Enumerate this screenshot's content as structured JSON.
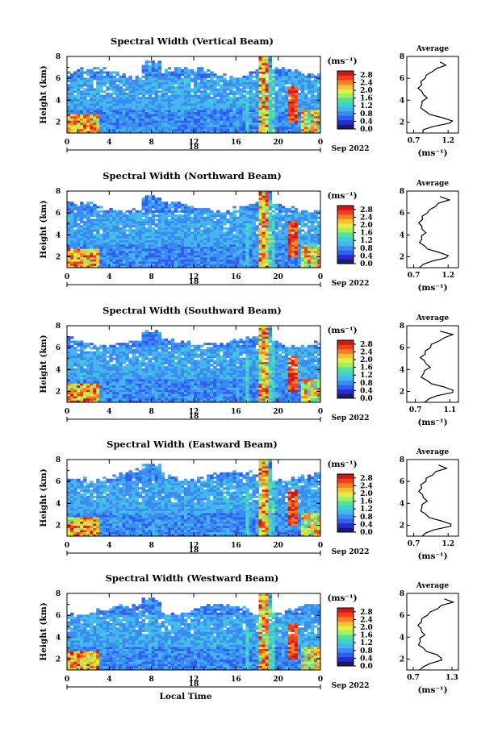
{
  "chart_data": [
    {
      "type": "heatmap",
      "title": "Spectral Width (Vertical Beam)",
      "ylabel": "Height (km)",
      "xlim": [
        0,
        24
      ],
      "ylim": [
        1,
        8
      ],
      "xticks": [
        "0",
        "4",
        "8",
        "12",
        "16",
        "20",
        "0"
      ],
      "yticks": [
        "2",
        "4",
        "6",
        "8"
      ],
      "date_marker": "18",
      "date_label": "Sep 2022",
      "colorbar": {
        "unit": "(ms⁻¹)",
        "ticks": [
          "0.0",
          "0.4",
          "0.8",
          "1.2",
          "1.6",
          "2.0",
          "2.4",
          "2.8"
        ],
        "range": [
          0,
          3.0
        ]
      },
      "average": {
        "title": "Average",
        "xlabel": "(ms⁻¹)",
        "xticks": [
          "0.7",
          "1.2"
        ],
        "xlim": [
          0.6,
          1.35
        ],
        "yticks": [
          "2",
          "4",
          "6",
          "8"
        ],
        "heights": [
          1.0,
          1.3,
          1.6,
          1.9,
          2.1,
          2.4,
          2.7,
          3.0,
          3.3,
          3.6,
          3.9,
          4.2,
          4.5,
          4.8,
          5.1,
          5.4,
          5.7,
          6.0,
          6.3,
          6.6,
          6.9,
          7.2,
          7.5
        ],
        "values": [
          0.85,
          0.82,
          1.0,
          1.2,
          1.28,
          1.1,
          0.95,
          0.85,
          0.82,
          0.8,
          0.84,
          0.88,
          0.86,
          0.8,
          0.78,
          0.8,
          0.82,
          0.85,
          0.9,
          0.95,
          1.05,
          1.15,
          1.1
        ]
      }
    },
    {
      "type": "heatmap",
      "title": "Spectral Width (Northward Beam)",
      "ylabel": "Height (km)",
      "xlim": [
        0,
        24
      ],
      "ylim": [
        1,
        8
      ],
      "xticks": [
        "0",
        "4",
        "8",
        "12",
        "16",
        "20",
        "0"
      ],
      "yticks": [
        "2",
        "4",
        "6",
        "8"
      ],
      "date_marker": "18",
      "date_label": "Sep 2022",
      "colorbar": {
        "unit": "(ms⁻¹)",
        "ticks": [
          "0.0",
          "0.4",
          "0.8",
          "1.2",
          "1.6",
          "2.0",
          "2.4",
          "2.8"
        ],
        "range": [
          0,
          3.0
        ]
      },
      "average": {
        "title": "Average",
        "xlabel": "(ms⁻¹)",
        "xticks": [
          "0.7",
          "1.2"
        ],
        "xlim": [
          0.6,
          1.35
        ],
        "yticks": [
          "2",
          "4",
          "6",
          "8"
        ],
        "heights": [
          1.0,
          1.3,
          1.6,
          1.9,
          2.1,
          2.4,
          2.7,
          3.0,
          3.3,
          3.6,
          3.9,
          4.2,
          4.5,
          4.8,
          5.1,
          5.4,
          5.7,
          6.0,
          6.3,
          6.6,
          6.9,
          7.2,
          7.5
        ],
        "values": [
          0.8,
          0.82,
          0.98,
          1.15,
          1.22,
          1.05,
          0.92,
          0.84,
          0.8,
          0.8,
          0.83,
          0.86,
          0.84,
          0.8,
          0.79,
          0.81,
          0.84,
          0.88,
          0.95,
          1.0,
          1.08,
          1.2,
          1.1
        ]
      }
    },
    {
      "type": "heatmap",
      "title": "Spectral Width (Southward Beam)",
      "ylabel": "Height (km)",
      "xlim": [
        0,
        24
      ],
      "ylim": [
        1,
        8
      ],
      "xticks": [
        "0",
        "4",
        "8",
        "12",
        "16",
        "20",
        "0"
      ],
      "yticks": [
        "2",
        "4",
        "6",
        "8"
      ],
      "date_marker": "18",
      "date_label": "Sep 2022",
      "colorbar": {
        "unit": "(ms⁻¹)",
        "ticks": [
          "0.0",
          "0.4",
          "0.8",
          "1.2",
          "1.6",
          "2.0",
          "2.4",
          "2.8"
        ],
        "range": [
          0,
          3.0
        ]
      },
      "average": {
        "title": "Average",
        "xlabel": "(ms⁻¹)",
        "xticks": [
          "0.7",
          "1.1"
        ],
        "xlim": [
          0.6,
          1.2
        ],
        "yticks": [
          "2",
          "4",
          "6",
          "8"
        ],
        "heights": [
          1.0,
          1.3,
          1.6,
          1.9,
          2.1,
          2.4,
          2.7,
          3.0,
          3.3,
          3.6,
          3.9,
          4.2,
          4.5,
          4.8,
          5.1,
          5.4,
          5.7,
          6.0,
          6.3,
          6.6,
          6.9,
          7.2,
          7.5
        ],
        "values": [
          0.82,
          0.84,
          0.96,
          1.12,
          1.15,
          1.02,
          0.9,
          0.82,
          0.78,
          0.78,
          0.82,
          0.86,
          0.84,
          0.79,
          0.77,
          0.8,
          0.83,
          0.86,
          0.9,
          0.96,
          1.05,
          1.12,
          1.0
        ]
      }
    },
    {
      "type": "heatmap",
      "title": "Spectral Width (Eastward Beam)",
      "ylabel": "Height (km)",
      "xlim": [
        0,
        24
      ],
      "ylim": [
        1,
        8
      ],
      "xticks": [
        "0",
        "4",
        "8",
        "12",
        "16",
        "20",
        "0"
      ],
      "yticks": [
        "2",
        "4",
        "6",
        "8"
      ],
      "date_marker": "18",
      "date_label": "Sep 2022",
      "colorbar": {
        "unit": "(ms⁻¹)",
        "ticks": [
          "0.0",
          "0.4",
          "0.8",
          "1.2",
          "1.6",
          "2.0",
          "2.4",
          "2.8"
        ],
        "range": [
          0,
          3.0
        ]
      },
      "average": {
        "title": "Average",
        "xlabel": "(ms⁻¹)",
        "xticks": [
          "0.7",
          "1.2"
        ],
        "xlim": [
          0.6,
          1.35
        ],
        "yticks": [
          "2",
          "4",
          "6",
          "8"
        ],
        "heights": [
          1.0,
          1.3,
          1.6,
          1.9,
          2.1,
          2.4,
          2.7,
          3.0,
          3.3,
          3.6,
          3.9,
          4.2,
          4.5,
          4.8,
          5.1,
          5.4,
          5.7,
          6.0,
          6.3,
          6.6,
          6.9,
          7.2,
          7.5
        ],
        "values": [
          0.84,
          0.86,
          1.02,
          1.22,
          1.26,
          1.08,
          0.94,
          0.86,
          0.82,
          0.8,
          0.84,
          0.88,
          0.86,
          0.81,
          0.79,
          0.8,
          0.82,
          0.86,
          0.9,
          0.96,
          1.04,
          1.16,
          1.08
        ]
      }
    },
    {
      "type": "heatmap",
      "title": "Spectral Width (Westward Beam)",
      "ylabel": "Height (km)",
      "xlabel": "Local Time",
      "xlim": [
        0,
        24
      ],
      "ylim": [
        1,
        8
      ],
      "xticks": [
        "0",
        "4",
        "8",
        "12",
        "16",
        "20",
        "0"
      ],
      "yticks": [
        "2",
        "4",
        "6",
        "8"
      ],
      "date_marker": "18",
      "date_label": "Sep 2022",
      "colorbar": {
        "unit": "(ms⁻¹)",
        "ticks": [
          "0.0",
          "0.4",
          "0.8",
          "1.2",
          "1.6",
          "2.0",
          "2.4",
          "2.8"
        ],
        "range": [
          0,
          3.0
        ]
      },
      "average": {
        "title": "Average",
        "xlabel": "(ms⁻¹)",
        "xticks": [
          "0.7",
          "1.3"
        ],
        "xlim": [
          0.6,
          1.4
        ],
        "yticks": [
          "2",
          "4",
          "6",
          "8"
        ],
        "heights": [
          1.0,
          1.3,
          1.6,
          1.9,
          2.1,
          2.4,
          2.7,
          3.0,
          3.3,
          3.6,
          3.9,
          4.2,
          4.5,
          4.8,
          5.1,
          5.4,
          5.7,
          6.0,
          6.3,
          6.6,
          6.9,
          7.2,
          7.5
        ],
        "values": [
          0.82,
          0.84,
          0.98,
          1.12,
          1.15,
          1.05,
          0.92,
          0.84,
          0.8,
          0.79,
          0.82,
          0.86,
          0.85,
          0.8,
          0.79,
          0.81,
          0.85,
          0.9,
          0.98,
          1.06,
          1.15,
          1.3,
          1.2
        ]
      }
    }
  ],
  "colors": {
    "scale": [
      "#1c1c5e",
      "#2a2ad0",
      "#2f5ef0",
      "#3a8cf0",
      "#46b4f0",
      "#40d0d0",
      "#50e0a0",
      "#a0f060",
      "#e0f040",
      "#f8c030",
      "#f88020",
      "#f04020",
      "#d01818"
    ]
  }
}
